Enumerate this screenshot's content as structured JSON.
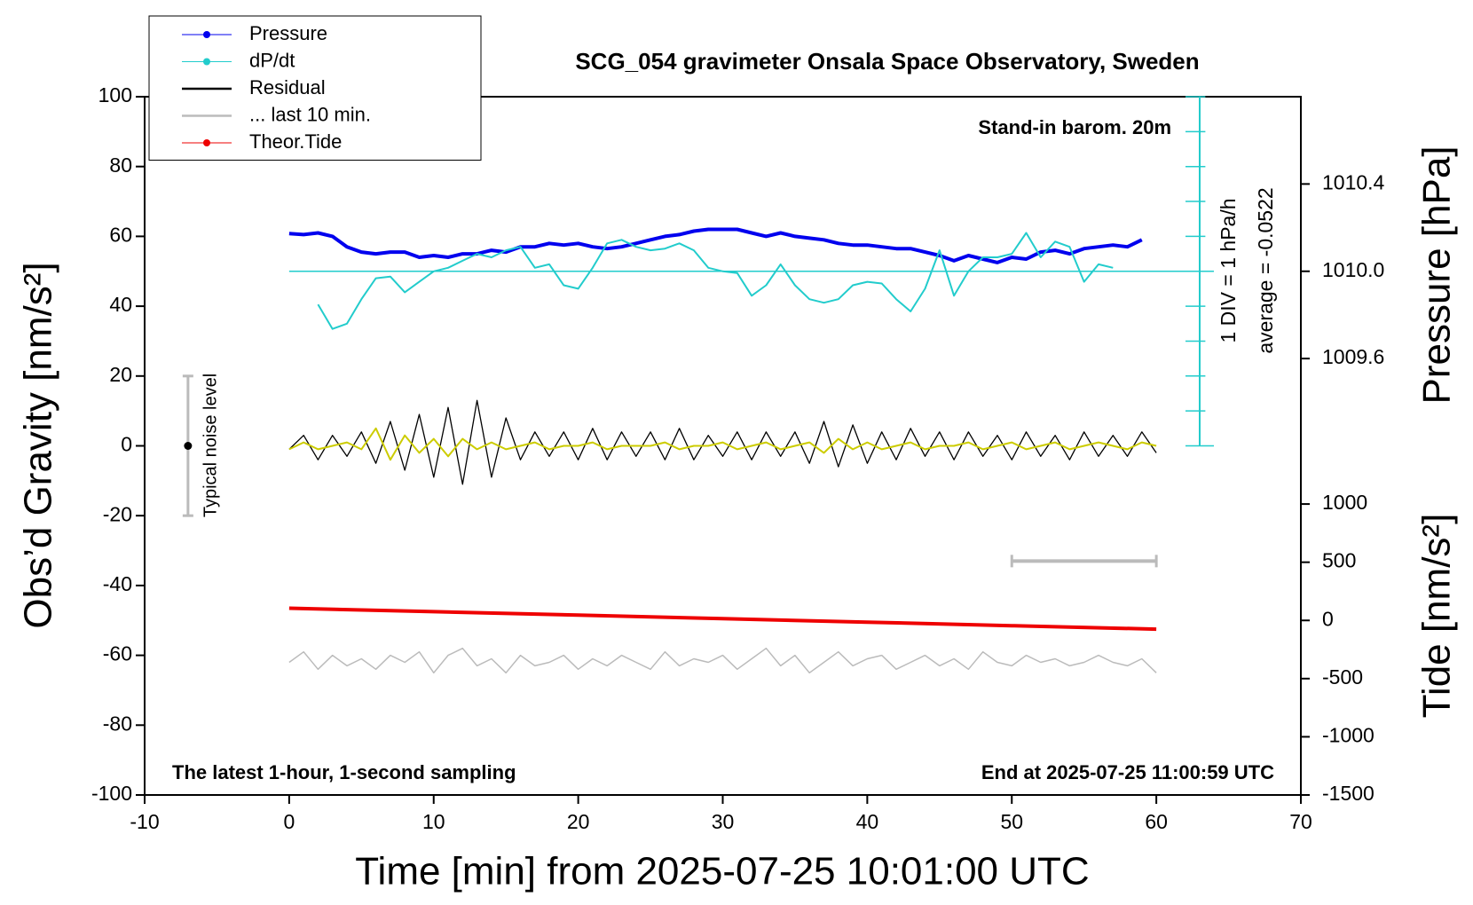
{
  "chart_data": {
    "type": "line",
    "title": "SCG_054 gravimeter Onsala Space Observatory, Sweden",
    "xlabel": "Time [min] from 2025-07-25 10:01:00 UTC",
    "ylabel": "Obs’d Gravity [nm/s²]",
    "y2label": "Pressure [hPa]",
    "y3label": "Tide [nm/s²]",
    "xlim": [
      -10,
      70
    ],
    "xticks": [
      -10,
      0,
      10,
      20,
      30,
      40,
      50,
      60,
      70
    ],
    "ylim": [
      -100,
      100
    ],
    "yticks": [
      -100,
      -80,
      -60,
      -40,
      -20,
      0,
      20,
      40,
      60,
      80,
      100
    ],
    "y2lim": [
      1007.6,
      1010.8
    ],
    "y2ticks": [
      1009.6,
      {
        "value": 1010,
        "label": "1010.0"
      },
      1010.4
    ],
    "y3lim": [
      -1500,
      4500
    ],
    "y3ticks": [
      -1500,
      -1000,
      -500,
      0,
      500,
      1000
    ],
    "dpdt_lim": [
      -15,
      5
    ],
    "dpdt_ticks": [
      -5,
      -4,
      -3,
      -2,
      -1,
      0,
      1,
      2,
      3,
      4,
      5
    ],
    "legend": "top-left",
    "annotations": {
      "barometer": "Stand-in barom. 20m",
      "division": "1 DIV = 1 hPa/h",
      "average": "average = -0.0522",
      "noise": "Typical noise level",
      "sampling": "The latest 1-hour, 1-second sampling",
      "end": "End at 2025-07-25 11:00:59 UTC"
    },
    "noise_bar": [
      -20,
      0,
      20
    ],
    "last10_range": [
      50,
      60
    ],
    "series": [
      {
        "name": "Pressure",
        "color": "#0000ee",
        "axis": "y2",
        "marker": "circle",
        "width": 4,
        "x": [
          0,
          1,
          2,
          3,
          4,
          5,
          6,
          7,
          8,
          9,
          10,
          11,
          12,
          13,
          14,
          15,
          16,
          17,
          18,
          19,
          20,
          21,
          22,
          23,
          24,
          25,
          26,
          27,
          28,
          29,
          30,
          31,
          32,
          33,
          34,
          35,
          36,
          37,
          38,
          39,
          40,
          41,
          42,
          43,
          44,
          45,
          46,
          47,
          48,
          49,
          50,
          51,
          52,
          53,
          54,
          55,
          56,
          57,
          58,
          59
        ],
        "values": [
          1010.173,
          1010.168,
          1010.176,
          1010.16,
          1010.112,
          1010.088,
          1010.08,
          1010.088,
          1010.088,
          1010.064,
          1010.072,
          1010.064,
          1010.08,
          1010.08,
          1010.096,
          1010.088,
          1010.112,
          1010.112,
          1010.128,
          1010.12,
          1010.128,
          1010.112,
          1010.104,
          1010.112,
          1010.128,
          1010.144,
          1010.16,
          1010.168,
          1010.184,
          1010.192,
          1010.192,
          1010.192,
          1010.176,
          1010.16,
          1010.176,
          1010.16,
          1010.152,
          1010.144,
          1010.128,
          1010.12,
          1010.12,
          1010.112,
          1010.104,
          1010.104,
          1010.088,
          1010.072,
          1010.048,
          1010.072,
          1010.056,
          1010.04,
          1010.064,
          1010.056,
          1010.088,
          1010.096,
          1010.08,
          1010.104,
          1010.112,
          1010.12,
          1010.112,
          1010.144
        ]
      },
      {
        "name": "dP/dt",
        "color": "#22cccc",
        "axis": "dpdt",
        "marker": "circle",
        "width": 2,
        "x": [
          2,
          3,
          4,
          5,
          6,
          7,
          8,
          9,
          10,
          11,
          12,
          13,
          14,
          15,
          16,
          17,
          18,
          19,
          20,
          21,
          22,
          23,
          24,
          25,
          26,
          27,
          28,
          29,
          30,
          31,
          32,
          33,
          34,
          35,
          36,
          37,
          38,
          39,
          40,
          41,
          42,
          43,
          44,
          45,
          46,
          47,
          48,
          49,
          50,
          51,
          52,
          53,
          54,
          55,
          56,
          57
        ],
        "values": [
          -0.95,
          -1.65,
          -1.5,
          -0.8,
          -0.2,
          -0.15,
          -0.6,
          -0.3,
          0,
          0.1,
          0.3,
          0.5,
          0.4,
          0.6,
          0.7,
          0.1,
          0.2,
          -0.4,
          -0.5,
          0.1,
          0.8,
          0.9,
          0.7,
          0.6,
          0.65,
          0.8,
          0.6,
          0.1,
          0,
          -0.05,
          -0.7,
          -0.4,
          0.2,
          -0.4,
          -0.8,
          -0.9,
          -0.8,
          -0.4,
          -0.3,
          -0.35,
          -0.8,
          -1.15,
          -0.5,
          0.6,
          -0.7,
          0,
          0.4,
          0.4,
          0.5,
          1.1,
          0.4,
          0.85,
          0.7,
          -0.3,
          0.2,
          0.1
        ]
      },
      {
        "name": "Residual",
        "color": "#000000",
        "width": 1.3,
        "x": [
          0,
          1,
          2,
          3,
          4,
          5,
          6,
          7,
          8,
          9,
          10,
          11,
          12,
          13,
          14,
          15,
          16,
          17,
          18,
          19,
          20,
          21,
          22,
          23,
          24,
          25,
          26,
          27,
          28,
          29,
          30,
          31,
          32,
          33,
          34,
          35,
          36,
          37,
          38,
          39,
          40,
          41,
          42,
          43,
          44,
          45,
          46,
          47,
          48,
          49,
          50,
          51,
          52,
          53,
          54,
          55,
          56,
          57,
          58,
          59,
          60
        ],
        "values": [
          -1,
          3,
          -4,
          3,
          -3,
          4,
          -5,
          7,
          -7,
          9,
          -9,
          11,
          -11,
          13,
          -9,
          8,
          -4,
          4,
          -3,
          4,
          -4,
          5,
          -4,
          4,
          -3,
          4,
          -4,
          5,
          -4,
          3,
          -3,
          4,
          -4,
          4,
          -3,
          4,
          -5,
          7,
          -6,
          6,
          -5,
          4,
          -4,
          5,
          -3,
          4,
          -4,
          4,
          -3,
          3,
          -4,
          4,
          -3,
          3,
          -4,
          4,
          -3,
          3,
          -3,
          4,
          -2
        ]
      },
      {
        "color": "#cccc00",
        "width": 2,
        "x": [
          0,
          1,
          2,
          3,
          4,
          5,
          6,
          7,
          8,
          9,
          10,
          11,
          12,
          13,
          14,
          15,
          16,
          17,
          18,
          19,
          20,
          21,
          22,
          23,
          24,
          25,
          26,
          27,
          28,
          29,
          30,
          31,
          32,
          33,
          34,
          35,
          36,
          37,
          38,
          39,
          40,
          41,
          42,
          43,
          44,
          45,
          46,
          47,
          48,
          49,
          50,
          51,
          52,
          53,
          54,
          55,
          56,
          57,
          58,
          59,
          60
        ],
        "values": [
          -1,
          1,
          -1,
          0,
          1,
          -1,
          5,
          -4,
          3,
          -2,
          2,
          -3,
          2,
          -1,
          1,
          -1,
          0,
          1,
          -1,
          0,
          0,
          1,
          -1,
          0,
          0,
          0,
          1,
          -1,
          0,
          0,
          1,
          -1,
          0,
          1,
          -1,
          0,
          1,
          -2,
          2,
          -1,
          1,
          -1,
          0,
          1,
          -1,
          0,
          0,
          1,
          -1,
          0,
          1,
          -1,
          0,
          1,
          -1,
          0,
          1,
          0,
          -1,
          1,
          0
        ]
      },
      {
        "name": "... last 10 min.",
        "color": "#bbbbbb",
        "width": 1.5,
        "x": [
          0,
          1,
          2,
          3,
          4,
          5,
          6,
          7,
          8,
          9,
          10,
          11,
          12,
          13,
          14,
          15,
          16,
          17,
          18,
          19,
          20,
          21,
          22,
          23,
          24,
          25,
          26,
          27,
          28,
          29,
          30,
          31,
          32,
          33,
          34,
          35,
          36,
          37,
          38,
          39,
          40,
          41,
          42,
          43,
          44,
          45,
          46,
          47,
          48,
          49,
          50,
          51,
          52,
          53,
          54,
          55,
          56,
          57,
          58,
          59,
          60
        ],
        "values": [
          -62,
          -59,
          -64,
          -60,
          -63,
          -61,
          -64,
          -60,
          -62,
          -59,
          -65,
          -60,
          -58,
          -63,
          -61,
          -65,
          -60,
          -63,
          -62,
          -60,
          -64,
          -61,
          -63,
          -60,
          -62,
          -64,
          -59,
          -63,
          -61,
          -62,
          -60,
          -64,
          -61,
          -58,
          -63,
          -60,
          -65,
          -62,
          -59,
          -63,
          -61,
          -60,
          -64,
          -62,
          -60,
          -63,
          -61,
          -64,
          -59,
          -62,
          -63,
          -60,
          -62,
          -61,
          -63,
          -62,
          -60,
          -62,
          -63,
          -61,
          -65
        ]
      },
      {
        "name": "Theor.Tide",
        "color": "#ee0000",
        "axis": "y3",
        "marker": "circle",
        "width": 4,
        "x": [
          0,
          10,
          20,
          30,
          40,
          50,
          60
        ],
        "values": [
          105,
          75,
          45,
          15,
          -15,
          -45,
          -75
        ]
      }
    ]
  }
}
